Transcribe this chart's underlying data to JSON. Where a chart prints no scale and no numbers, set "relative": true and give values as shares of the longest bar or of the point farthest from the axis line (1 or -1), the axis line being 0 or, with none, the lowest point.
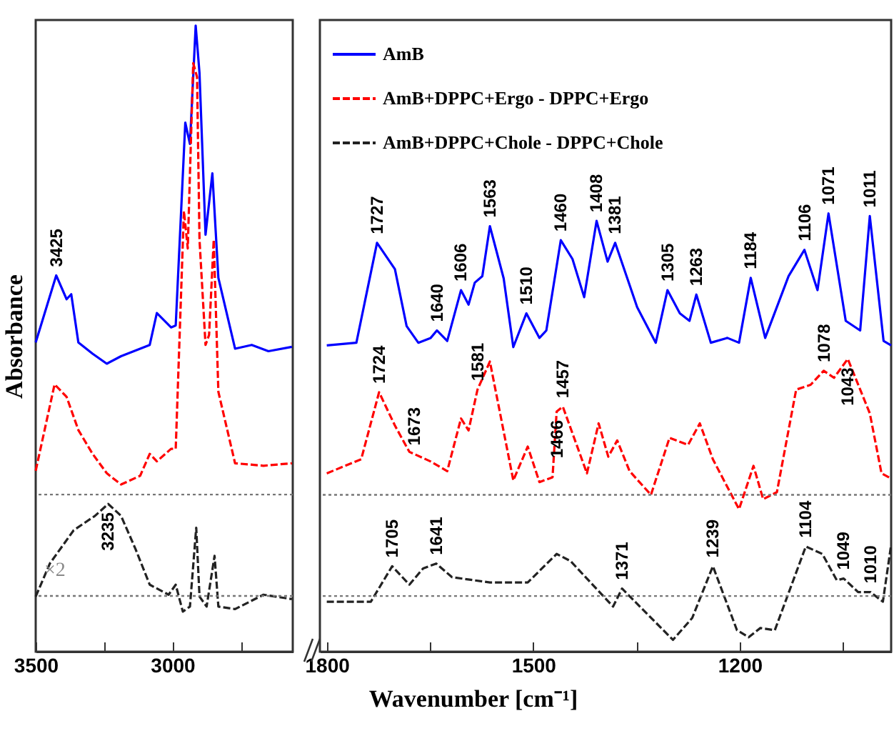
{
  "chart_data": [
    {
      "type": "line",
      "ylabel": "Absorbance",
      "relative": true,
      "xlim": [
        3500,
        2560
      ],
      "xticks": [
        3500,
        {
          "value": 3250,
          "label": null
        },
        3000,
        {
          "value": 2750,
          "label": null
        }
      ],
      "ref_lines": [
        {
          "axis": "y",
          "value": 0.251,
          "color": "#777777",
          "line_style": "dotted"
        },
        {
          "axis": "y",
          "value": 0.089,
          "color": "#777777",
          "line_style": "dotted"
        }
      ],
      "annotations": [
        {
          "text": "3425",
          "x": 3425,
          "y": 0.601
        },
        {
          "text": "3235",
          "x": 3235,
          "y": 0.236
        },
        "×2"
      ],
      "series": [
        {
          "color": "#0000ff",
          "line_style": "solid",
          "x": [
            3500,
            3425,
            3387,
            3370,
            3344,
            3292,
            3240,
            3188,
            3118,
            3083,
            3057,
            3005,
            2988,
            2953,
            2936,
            2915,
            2901,
            2879,
            2854,
            2832,
            2771,
            2710,
            2649,
            2563
          ],
          "values": [
            0.494,
            0.601,
            0.563,
            0.571,
            0.494,
            0.476,
            0.46,
            0.472,
            0.484,
            0.49,
            0.541,
            0.518,
            0.521,
            0.845,
            0.811,
            1.0,
            0.924,
            0.666,
            0.764,
            0.597,
            0.484,
            0.49,
            0.48,
            0.487
          ]
        },
        {
          "color": "#ff0000",
          "line_style": "dashed",
          "x": [
            3500,
            3431,
            3387,
            3344,
            3292,
            3240,
            3188,
            3118,
            3083,
            3057,
            3005,
            2988,
            2958,
            2944,
            2924,
            2910,
            2901,
            2879,
            2866,
            2849,
            2832,
            2771,
            2667,
            2563
          ],
          "values": [
            0.289,
            0.427,
            0.407,
            0.354,
            0.316,
            0.285,
            0.267,
            0.281,
            0.316,
            0.304,
            0.324,
            0.324,
            0.704,
            0.644,
            0.94,
            0.918,
            0.658,
            0.49,
            0.506,
            0.658,
            0.415,
            0.301,
            0.297,
            0.301
          ]
        },
        {
          "color": "#222222",
          "line_style": "dashed",
          "x": [
            3500,
            3448,
            3361,
            3283,
            3235,
            3188,
            3135,
            3083,
            3014,
            2988,
            2962,
            2936,
            2913,
            2901,
            2875,
            2846,
            2832,
            2771,
            2667,
            2563
          ],
          "values": [
            0.088,
            0.141,
            0.194,
            0.217,
            0.236,
            0.217,
            0.164,
            0.107,
            0.091,
            0.107,
            0.064,
            0.072,
            0.198,
            0.088,
            0.072,
            0.153,
            0.072,
            0.068,
            0.091,
            0.084
          ]
        }
      ]
    },
    {
      "type": "line",
      "xlabel": "Wavenumber  [cm⁻¹]",
      "relative": true,
      "legend": "top left",
      "xlim": [
        1810,
        980
      ],
      "xticks": [
        1800,
        {
          "value": 1650,
          "label": null
        },
        1500,
        {
          "value": 1350,
          "label": null
        },
        1200,
        {
          "value": 1050,
          "label": null
        }
      ],
      "ref_lines": [
        {
          "axis": "y",
          "value": 0.358,
          "color": "#777777",
          "line_style": "dotted"
        },
        {
          "axis": "y",
          "value": 0.127,
          "color": "#777777",
          "line_style": "dotted"
        }
      ],
      "annotations": [
        {
          "text": "1727",
          "x": 1727,
          "y": 0.933
        },
        {
          "text": "1640",
          "x": 1640,
          "y": 0.733
        },
        {
          "text": "1606",
          "x": 1606,
          "y": 0.825
        },
        {
          "text": "1563",
          "x": 1563,
          "y": 0.971
        },
        {
          "text": "1510",
          "x": 1510,
          "y": 0.772
        },
        {
          "text": "1460",
          "x": 1460,
          "y": 0.939
        },
        {
          "text": "1408",
          "x": 1408,
          "y": 0.983
        },
        {
          "text": "1381",
          "x": 1381,
          "y": 0.933
        },
        {
          "text": "1305",
          "x": 1305,
          "y": 0.825
        },
        {
          "text": "1263",
          "x": 1263,
          "y": 0.815
        },
        {
          "text": "1184",
          "x": 1184,
          "y": 0.853
        },
        {
          "text": "1106",
          "x": 1106,
          "y": 0.917
        },
        {
          "text": "1071",
          "x": 1071,
          "y": 1.0
        },
        {
          "text": "1011",
          "x": 1011,
          "y": 0.994
        },
        {
          "text": "1724",
          "x": 1724,
          "y": 0.592
        },
        {
          "text": "1673",
          "x": 1673,
          "y": 0.451
        },
        {
          "text": "1581",
          "x": 1581,
          "y": 0.598
        },
        {
          "text": "1466",
          "x": 1466,
          "y": 0.548
        },
        {
          "text": "1457",
          "x": 1457,
          "y": 0.559
        },
        {
          "text": "1078",
          "x": 1078,
          "y": 0.641
        },
        {
          "text": "1043",
          "x": 1043,
          "y": 0.668
        },
        {
          "text": "1705",
          "x": 1705,
          "y": 0.195
        },
        {
          "text": "1641",
          "x": 1641,
          "y": 0.201
        },
        {
          "text": "1371",
          "x": 1371,
          "y": 0.144
        },
        {
          "text": "1239",
          "x": 1239,
          "y": 0.195
        },
        {
          "text": "1104",
          "x": 1104,
          "y": 0.24
        },
        {
          "text": "1049",
          "x": 1049,
          "y": 0.167
        },
        {
          "text": "1010",
          "x": 1010,
          "y": 0.136
        }
      ],
      "series": [
        {
          "name": "AmB",
          "color": "#0000ff",
          "line_style": "solid",
          "x": [
            1800,
            1757,
            1727,
            1701,
            1684,
            1667,
            1649,
            1640,
            1625,
            1605,
            1594,
            1585,
            1574,
            1563,
            1543,
            1529,
            1510,
            1491,
            1481,
            1460,
            1443,
            1426,
            1408,
            1392,
            1381,
            1349,
            1322,
            1305,
            1287,
            1273,
            1263,
            1242,
            1218,
            1201,
            1184,
            1163,
            1129,
            1106,
            1087,
            1071,
            1046,
            1025,
            1011,
            991,
            980
          ],
          "values": [
            0.699,
            0.705,
            0.933,
            0.873,
            0.743,
            0.705,
            0.716,
            0.733,
            0.709,
            0.825,
            0.792,
            0.842,
            0.857,
            0.971,
            0.852,
            0.695,
            0.772,
            0.716,
            0.733,
            0.939,
            0.896,
            0.809,
            0.983,
            0.89,
            0.933,
            0.786,
            0.705,
            0.825,
            0.772,
            0.755,
            0.815,
            0.705,
            0.716,
            0.705,
            0.853,
            0.716,
            0.857,
            0.917,
            0.825,
            1.0,
            0.755,
            0.733,
            0.994,
            0.709,
            0.699
          ]
        },
        {
          "name": "AmB+DPPC+Ergo - DPPC+Ergo",
          "color": "#ff0000",
          "line_style": "dashed",
          "x": [
            1800,
            1750,
            1724,
            1701,
            1680,
            1673,
            1649,
            1625,
            1605,
            1594,
            1581,
            1563,
            1529,
            1508,
            1491,
            1472,
            1466,
            1457,
            1422,
            1405,
            1391,
            1378,
            1360,
            1329,
            1302,
            1275,
            1258,
            1239,
            1201,
            1180,
            1166,
            1146,
            1118,
            1097,
            1078,
            1063,
            1043,
            1011,
            994,
            980
          ],
          "values": [
            0.407,
            0.439,
            0.592,
            0.516,
            0.456,
            0.451,
            0.434,
            0.412,
            0.532,
            0.505,
            0.598,
            0.662,
            0.391,
            0.468,
            0.387,
            0.398,
            0.548,
            0.559,
            0.407,
            0.521,
            0.445,
            0.482,
            0.412,
            0.358,
            0.488,
            0.472,
            0.521,
            0.439,
            0.325,
            0.424,
            0.348,
            0.364,
            0.598,
            0.609,
            0.641,
            0.625,
            0.668,
            0.544,
            0.407,
            0.395
          ]
        },
        {
          "name": "AmB+DPPC+Chole - DPPC+Chole",
          "color": "#222222",
          "line_style": "dashed",
          "x": [
            1800,
            1736,
            1705,
            1680,
            1660,
            1641,
            1618,
            1563,
            1508,
            1466,
            1446,
            1384,
            1371,
            1335,
            1297,
            1269,
            1239,
            1204,
            1187,
            1170,
            1149,
            1104,
            1080,
            1059,
            1049,
            1028,
            1010,
            992,
            980
          ],
          "values": [
            0.114,
            0.114,
            0.195,
            0.153,
            0.19,
            0.201,
            0.17,
            0.158,
            0.158,
            0.223,
            0.207,
            0.103,
            0.144,
            0.087,
            0.027,
            0.077,
            0.195,
            0.049,
            0.033,
            0.054,
            0.049,
            0.24,
            0.223,
            0.163,
            0.167,
            0.136,
            0.136,
            0.114,
            0.244
          ]
        }
      ]
    }
  ]
}
